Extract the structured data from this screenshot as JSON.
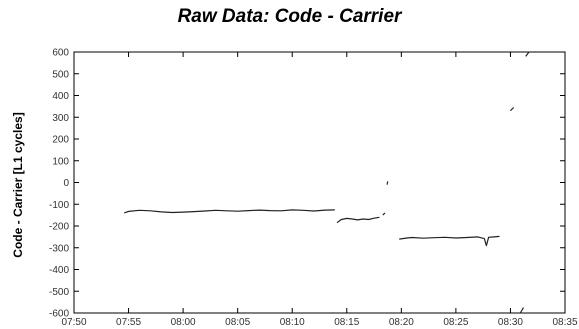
{
  "chart_data": {
    "type": "line",
    "title": "Raw Data: Code - Carrier",
    "xlabel": "",
    "ylabel": "Code - Carrier [L1 cycles]",
    "xlim_minutes": [
      470,
      515
    ],
    "x_ticks": [
      "07:50",
      "07:55",
      "08:00",
      "08:05",
      "08:10",
      "08:15",
      "08:20",
      "08:25",
      "08:30",
      "08:35"
    ],
    "ylim": [
      -600,
      600
    ],
    "y_ticks": [
      600,
      500,
      400,
      300,
      200,
      100,
      0,
      -100,
      -200,
      -300,
      -400,
      -500,
      -600
    ],
    "grid": false,
    "color": "#222222",
    "series": [
      {
        "x": [
          "07:54.6",
          "07:55.0",
          "07:56.0",
          "07:57.0",
          "07:58.0",
          "07:59.0",
          "08:00.0",
          "08:01.0",
          "08:02.0",
          "08:03.0",
          "08:04.0",
          "08:05.0",
          "08:06.0",
          "08:07.0",
          "08:08.0",
          "08:09.0",
          "08:10.0",
          "08:11.0",
          "08:12.0",
          "08:13.0",
          "08:13.9"
        ],
        "y": [
          -140,
          -133,
          -128,
          -130,
          -135,
          -138,
          -136,
          -134,
          -131,
          -128,
          -130,
          -132,
          -129,
          -127,
          -129,
          -130,
          -126,
          -128,
          -131,
          -127,
          -126
        ]
      },
      {
        "x": [
          "08:14.1",
          "08:14.5",
          "08:15.0",
          "08:15.5",
          "08:16.0",
          "08:16.5",
          "08:17.0",
          "08:17.5",
          "08:18.0"
        ],
        "y": [
          -185,
          -170,
          -165,
          -168,
          -172,
          -168,
          -170,
          -164,
          -160
        ]
      },
      {
        "x": [
          "08:18.3",
          "08:18.5"
        ],
        "y": [
          -150,
          -140
        ]
      },
      {
        "x": [
          "08:18.7",
          "08:18.75"
        ],
        "y": [
          -10,
          5
        ]
      },
      {
        "x": [
          "08:19.8",
          "08:20.5",
          "08:21.0",
          "08:22.0",
          "08:23.0",
          "08:24.0",
          "08:25.0",
          "08:26.0",
          "08:27.0",
          "08:27.6",
          "08:27.8",
          "08:28.0",
          "08:28.5",
          "08:29.0"
        ],
        "y": [
          -260,
          -255,
          -253,
          -256,
          -254,
          -252,
          -255,
          -253,
          -250,
          -258,
          -290,
          -252,
          -250,
          -248
        ]
      },
      {
        "x": [
          "08:30.0",
          "08:30.3"
        ],
        "y": [
          330,
          345
        ]
      },
      {
        "x": [
          "08:30.9",
          "08:31.2"
        ],
        "y": [
          -600,
          -575
        ]
      },
      {
        "x": [
          "08:31.4",
          "08:31.7"
        ],
        "y": [
          580,
          600
        ]
      }
    ]
  }
}
